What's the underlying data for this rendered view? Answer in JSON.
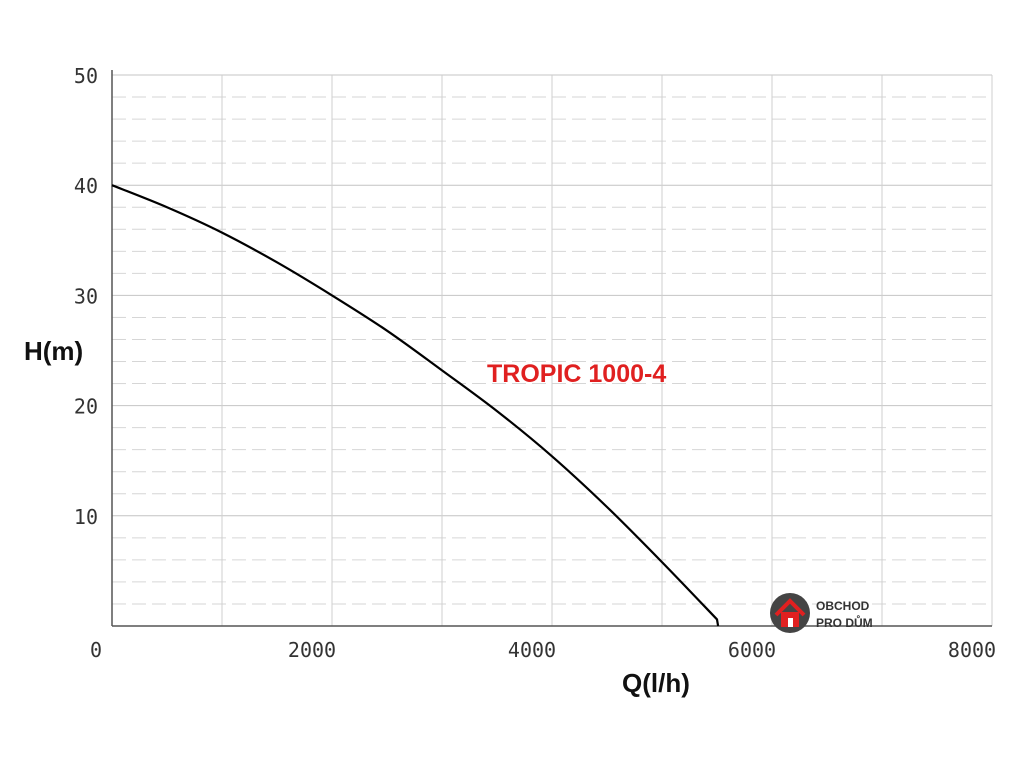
{
  "chart_data": {
    "type": "line",
    "title": "",
    "xlabel": "Q(l/h)",
    "ylabel": "H(m)",
    "xlim": [
      0,
      8000
    ],
    "ylim": [
      0,
      50
    ],
    "x_ticks": [
      0,
      2000,
      4000,
      6000,
      8000
    ],
    "y_ticks": [
      10,
      20,
      30,
      40,
      50
    ],
    "grid": true,
    "series": [
      {
        "name": "TROPIC 1000-4",
        "color": "#000000",
        "x": [
          0,
          500,
          1000,
          1500,
          2000,
          2500,
          3000,
          3500,
          4000,
          4500,
          5000,
          5500
        ],
        "y": [
          40,
          38,
          35.7,
          33,
          30,
          26.8,
          23.2,
          19.5,
          15.4,
          10.8,
          5.8,
          0.6
        ]
      }
    ],
    "annotations": [
      {
        "text": "TROPIC 1000-4",
        "color": "#e02020"
      }
    ]
  },
  "logo": {
    "line1": "OBCHOD",
    "line2": "PRO DŮM",
    "icon": "house-icon",
    "icon_color": "#e02020",
    "circle_color": "#444444"
  }
}
